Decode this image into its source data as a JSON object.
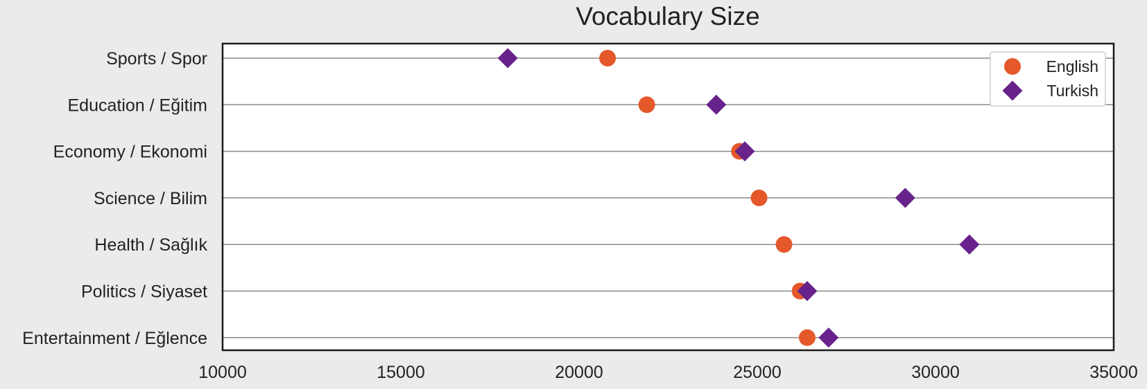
{
  "chart_data": {
    "type": "scatter",
    "title": "Vocabulary Size",
    "xlabel": "",
    "ylabel": "",
    "xlim": [
      10000,
      35000
    ],
    "x_ticks": [
      10000,
      15000,
      20000,
      25000,
      30000,
      35000
    ],
    "x_tick_labels": [
      "10000",
      "15000",
      "20000",
      "25000",
      "30000",
      "35000"
    ],
    "categories": [
      "Sports / Spor",
      "Education / Eğitim",
      "Economy / Ekonomi",
      "Science / Bilim",
      "Health / Sağlık",
      "Politics / Siyaset",
      "Entertainment / Eğlence"
    ],
    "series": [
      {
        "name": "English",
        "marker": "circle",
        "color": "#e4582a",
        "values": [
          20800,
          21900,
          24500,
          25050,
          25750,
          26200,
          26400
        ]
      },
      {
        "name": "Turkish",
        "marker": "diamond",
        "color": "#68228b",
        "values": [
          18000,
          23850,
          24650,
          29150,
          30950,
          26400,
          27000
        ]
      }
    ],
    "grid": "horizontal",
    "legend_position": "top-right"
  }
}
